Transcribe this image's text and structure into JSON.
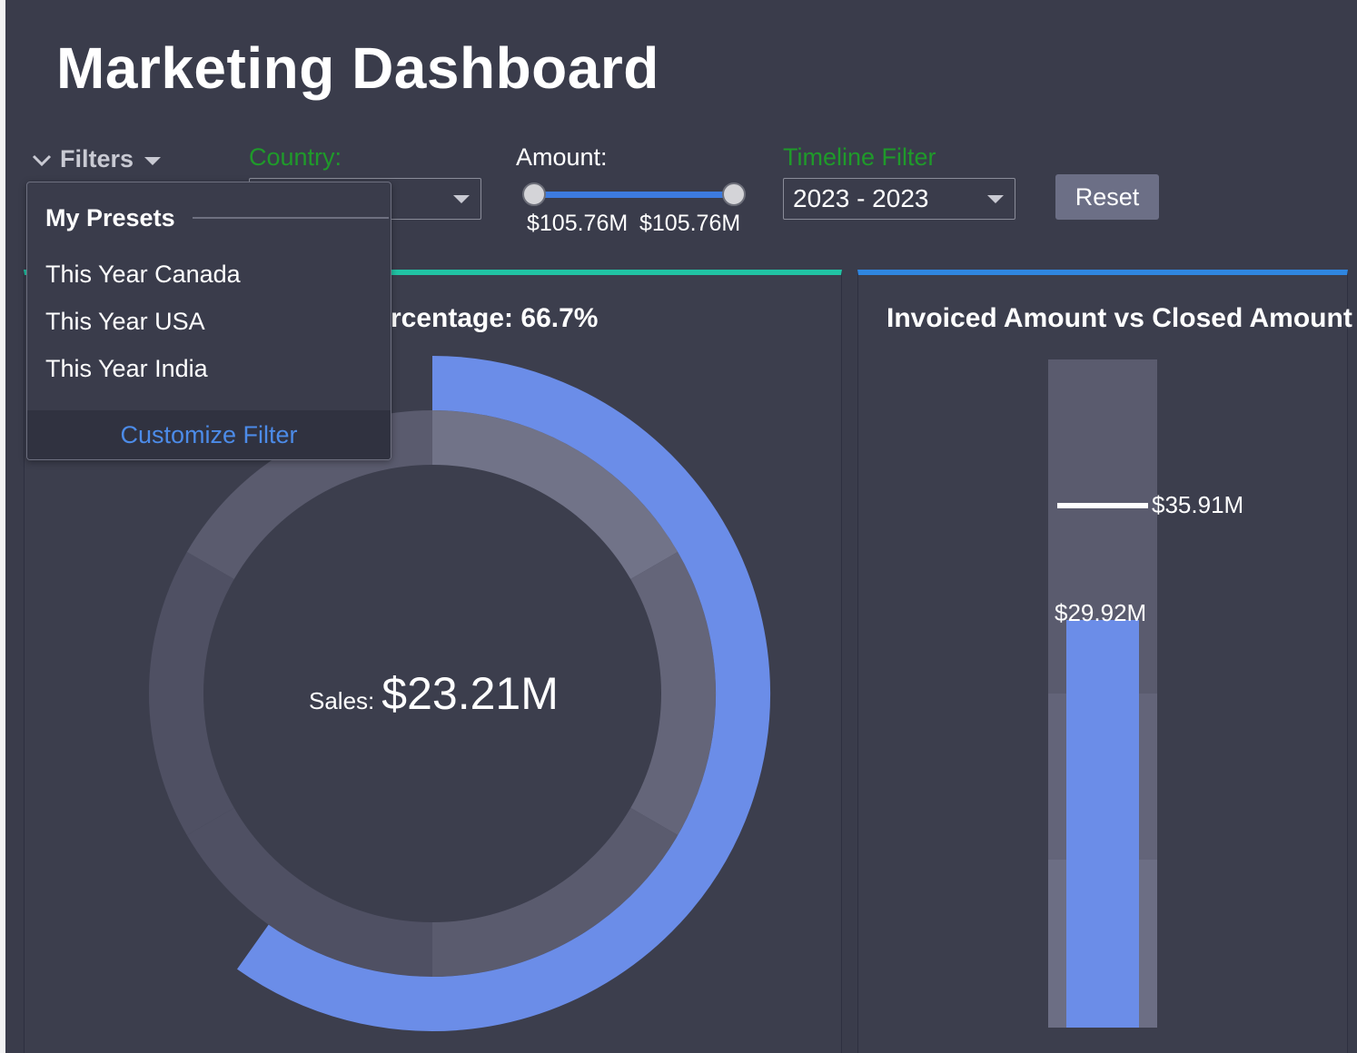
{
  "page": {
    "title": "Marketing Dashboard"
  },
  "filters": {
    "toggle_label": "Filters",
    "country_label": "Country:",
    "country_value": "",
    "amount_label": "Amount:",
    "amount_min": "$105.76M",
    "amount_max": "$105.76M",
    "timeline_label": "Timeline Filter",
    "timeline_value": "2023 - 2023",
    "reset_label": "Reset"
  },
  "presets": {
    "heading": "My Presets",
    "items": [
      "This Year Canada",
      "This Year USA",
      "This Year India"
    ],
    "footer": "Customize Filter"
  },
  "cards": {
    "left": {
      "title_visible": "rcentage: 66.7%",
      "center_key": "Sales:",
      "center_value": "$23.21M"
    },
    "right": {
      "title": "Invoiced Amount vs Closed Amount",
      "target_label": "$35.91M",
      "bar_label": "$29.92M"
    }
  },
  "colors": {
    "accent_teal": "#21c3a4",
    "accent_blue": "#2f86e0",
    "bar_blue": "#6b8de8",
    "label_green": "#1f9a2a",
    "link_blue": "#4c8be8"
  },
  "chart_data": [
    {
      "type": "gauge",
      "title": "",
      "value_percent": 66.7,
      "center_text": "Sales: $23.21M",
      "bands": 6
    },
    {
      "type": "bullet",
      "title": "Invoiced Amount vs Closed Amount",
      "series": [
        {
          "name": "",
          "value": 29.92
        },
        {
          "name": "",
          "target": 35.91
        }
      ],
      "unit": "$M"
    }
  ]
}
